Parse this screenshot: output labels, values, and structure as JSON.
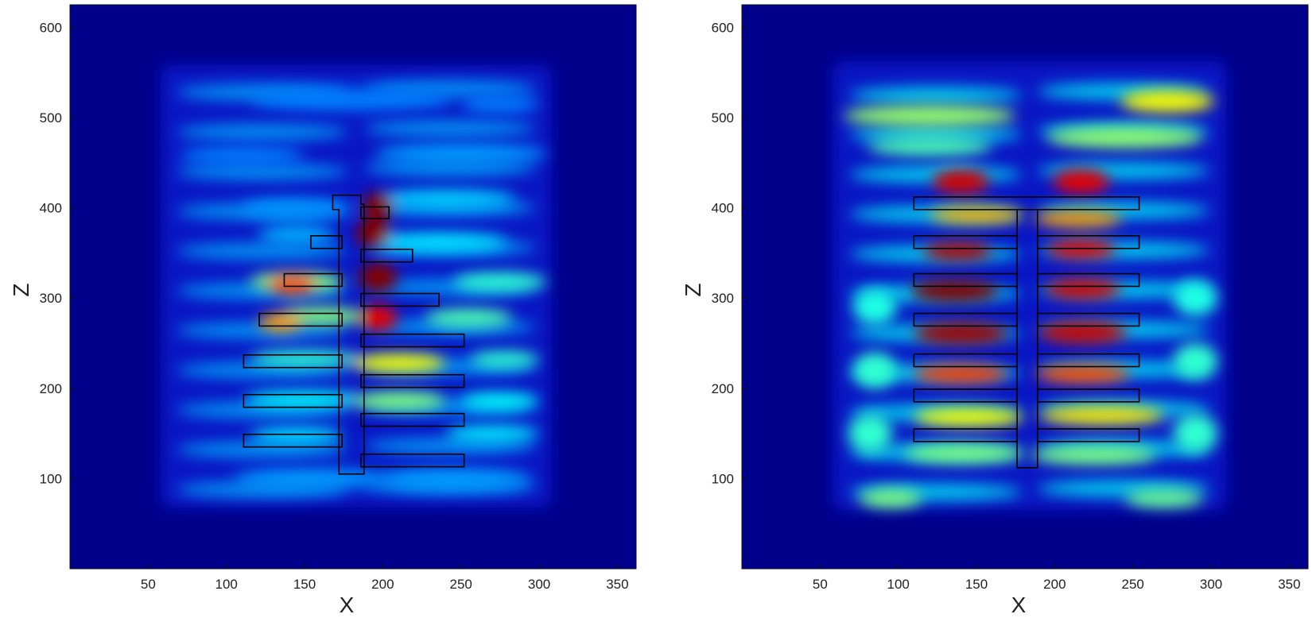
{
  "chart_data": [
    {
      "type": "heatmap",
      "title": "",
      "xlabel": "X",
      "ylabel": "Z",
      "xlim": [
        0,
        362
      ],
      "ylim": [
        0,
        625
      ],
      "xticks": [
        50,
        100,
        150,
        200,
        250,
        300,
        350
      ],
      "yticks": [
        100,
        200,
        300,
        400,
        500,
        600
      ],
      "colormap": "jet",
      "structure": {
        "spine": [
          [
            172,
            105
          ],
          [
            172,
            398
          ],
          [
            168,
            398
          ],
          [
            168,
            414
          ],
          [
            186,
            414
          ],
          [
            186,
            404
          ],
          [
            188,
            404
          ],
          [
            188,
            105
          ]
        ],
        "fins": [
          {
            "x0": 186,
            "x1": 204,
            "z0": 388,
            "z1": 401
          },
          {
            "x0": 154,
            "x1": 174,
            "z0": 355,
            "z1": 369
          },
          {
            "x0": 186,
            "x1": 219,
            "z0": 340,
            "z1": 354
          },
          {
            "x0": 137,
            "x1": 174,
            "z0": 313,
            "z1": 327
          },
          {
            "x0": 186,
            "x1": 236,
            "z0": 291,
            "z1": 305
          },
          {
            "x0": 121,
            "x1": 174,
            "z0": 269,
            "z1": 283
          },
          {
            "x0": 186,
            "x1": 252,
            "z0": 246,
            "z1": 260
          },
          {
            "x0": 111,
            "x1": 174,
            "z0": 223,
            "z1": 237
          },
          {
            "x0": 186,
            "x1": 252,
            "z0": 201,
            "z1": 215
          },
          {
            "x0": 111,
            "x1": 174,
            "z0": 179,
            "z1": 193
          },
          {
            "x0": 186,
            "x1": 252,
            "z0": 158,
            "z1": 172
          },
          {
            "x0": 111,
            "x1": 174,
            "z0": 135,
            "z1": 149
          },
          {
            "x0": 186,
            "x1": 252,
            "z0": 113,
            "z1": 127
          }
        ]
      },
      "hotspots": [
        {
          "x": 197,
          "z": 402,
          "w": 10,
          "h": 15,
          "level": 1.0
        },
        {
          "x": 194,
          "z": 372,
          "w": 11,
          "h": 16,
          "level": 1.0
        },
        {
          "x": 197,
          "z": 323,
          "w": 12,
          "h": 16,
          "level": 1.0
        },
        {
          "x": 197,
          "z": 278,
          "w": 12,
          "h": 14,
          "level": 0.9
        },
        {
          "x": 142,
          "z": 315,
          "w": 16,
          "h": 11,
          "level": 0.8
        },
        {
          "x": 135,
          "z": 273,
          "w": 14,
          "h": 10,
          "level": 0.72
        },
        {
          "x": 210,
          "z": 228,
          "w": 30,
          "h": 10,
          "level": 0.62
        },
        {
          "x": 210,
          "z": 186,
          "w": 30,
          "h": 10,
          "level": 0.5
        },
        {
          "x": 145,
          "z": 318,
          "w": 30,
          "h": 11,
          "level": 0.5
        },
        {
          "x": 160,
          "z": 280,
          "w": 28,
          "h": 10,
          "level": 0.5
        },
        {
          "x": 255,
          "z": 278,
          "w": 28,
          "h": 10,
          "level": 0.45
        },
        {
          "x": 275,
          "z": 318,
          "w": 30,
          "h": 10,
          "level": 0.42
        },
        {
          "x": 150,
          "z": 233,
          "w": 35,
          "h": 9,
          "level": 0.42
        },
        {
          "x": 278,
          "z": 232,
          "w": 22,
          "h": 9,
          "level": 0.42
        },
        {
          "x": 150,
          "z": 188,
          "w": 38,
          "h": 9,
          "level": 0.38
        },
        {
          "x": 275,
          "z": 186,
          "w": 25,
          "h": 9,
          "level": 0.38
        },
        {
          "x": 270,
          "z": 150,
          "w": 30,
          "h": 9,
          "level": 0.36
        },
        {
          "x": 145,
          "z": 148,
          "w": 30,
          "h": 9,
          "level": 0.35
        },
        {
          "x": 235,
          "z": 362,
          "w": 45,
          "h": 10,
          "level": 0.35
        },
        {
          "x": 240,
          "z": 410,
          "w": 45,
          "h": 10,
          "level": 0.33
        },
        {
          "x": 145,
          "z": 370,
          "w": 25,
          "h": 10,
          "level": 0.3
        },
        {
          "x": 155,
          "z": 100,
          "w": 50,
          "h": 11,
          "level": 0.28
        },
        {
          "x": 245,
          "z": 100,
          "w": 50,
          "h": 11,
          "level": 0.28
        },
        {
          "x": 145,
          "z": 400,
          "w": 35,
          "h": 10,
          "level": 0.27
        },
        {
          "x": 250,
          "z": 460,
          "w": 55,
          "h": 11,
          "level": 0.28
        },
        {
          "x": 110,
          "z": 458,
          "w": 40,
          "h": 10,
          "level": 0.25
        },
        {
          "x": 180,
          "z": 520,
          "w": 65,
          "h": 12,
          "level": 0.25
        },
        {
          "x": 275,
          "z": 515,
          "w": 25,
          "h": 10,
          "level": 0.25
        }
      ]
    },
    {
      "type": "heatmap",
      "title": "",
      "xlabel": "X",
      "ylabel": "Z",
      "xlim": [
        0,
        362
      ],
      "ylim": [
        0,
        625
      ],
      "xticks": [
        50,
        100,
        150,
        200,
        250,
        300,
        350
      ],
      "yticks": [
        100,
        200,
        300,
        400,
        500,
        600
      ],
      "colormap": "jet",
      "structure": {
        "left_spine": [
          [
            110,
            398
          ],
          [
            110,
            412
          ],
          [
            254,
            412
          ],
          [
            254,
            398
          ],
          [
            176,
            398
          ],
          [
            176,
            112
          ],
          [
            189,
            112
          ],
          [
            189,
            398
          ]
        ],
        "left_fins": [
          {
            "x0": 110,
            "x1": 176,
            "z0": 355,
            "z1": 369
          },
          {
            "x0": 110,
            "x1": 176,
            "z0": 313,
            "z1": 327
          },
          {
            "x0": 110,
            "x1": 176,
            "z0": 269,
            "z1": 283
          },
          {
            "x0": 110,
            "x1": 176,
            "z0": 224,
            "z1": 238
          },
          {
            "x0": 110,
            "x1": 176,
            "z0": 185,
            "z1": 199
          },
          {
            "x0": 110,
            "x1": 176,
            "z0": 141,
            "z1": 155
          }
        ],
        "right_fins": [
          {
            "x0": 189,
            "x1": 254,
            "z0": 355,
            "z1": 369
          },
          {
            "x0": 189,
            "x1": 254,
            "z0": 313,
            "z1": 327
          },
          {
            "x0": 189,
            "x1": 254,
            "z0": 269,
            "z1": 283
          },
          {
            "x0": 189,
            "x1": 254,
            "z0": 224,
            "z1": 238
          },
          {
            "x0": 189,
            "x1": 254,
            "z0": 185,
            "z1": 199
          },
          {
            "x0": 189,
            "x1": 254,
            "z0": 141,
            "z1": 155
          }
        ]
      },
      "hotspots": [
        {
          "x": 140,
          "z": 429,
          "w": 18,
          "h": 13,
          "level": 0.92
        },
        {
          "x": 217,
          "z": 429,
          "w": 18,
          "h": 13,
          "level": 0.9
        },
        {
          "x": 138,
          "z": 352,
          "w": 22,
          "h": 10,
          "level": 0.95
        },
        {
          "x": 217,
          "z": 354,
          "w": 22,
          "h": 10,
          "level": 0.9
        },
        {
          "x": 136,
          "z": 308,
          "w": 28,
          "h": 12,
          "level": 1.0
        },
        {
          "x": 218,
          "z": 310,
          "w": 24,
          "h": 11,
          "level": 0.92
        },
        {
          "x": 140,
          "z": 261,
          "w": 30,
          "h": 12,
          "level": 0.97
        },
        {
          "x": 218,
          "z": 262,
          "w": 28,
          "h": 12,
          "level": 0.93
        },
        {
          "x": 140,
          "z": 216,
          "w": 30,
          "h": 10,
          "level": 0.82
        },
        {
          "x": 218,
          "z": 216,
          "w": 30,
          "h": 10,
          "level": 0.8
        },
        {
          "x": 150,
          "z": 392,
          "w": 30,
          "h": 9,
          "level": 0.7
        },
        {
          "x": 215,
          "z": 388,
          "w": 28,
          "h": 9,
          "level": 0.72
        },
        {
          "x": 145,
          "z": 168,
          "w": 35,
          "h": 10,
          "level": 0.62
        },
        {
          "x": 230,
          "z": 170,
          "w": 40,
          "h": 10,
          "level": 0.65
        },
        {
          "x": 142,
          "z": 128,
          "w": 38,
          "h": 10,
          "level": 0.5
        },
        {
          "x": 225,
          "z": 126,
          "w": 40,
          "h": 10,
          "level": 0.5
        },
        {
          "x": 272,
          "z": 518,
          "w": 30,
          "h": 12,
          "level": 0.62
        },
        {
          "x": 120,
          "z": 502,
          "w": 55,
          "h": 12,
          "level": 0.52
        },
        {
          "x": 245,
          "z": 478,
          "w": 50,
          "h": 11,
          "level": 0.52
        },
        {
          "x": 120,
          "z": 468,
          "w": 40,
          "h": 10,
          "level": 0.45
        },
        {
          "x": 95,
          "z": 78,
          "w": 20,
          "h": 10,
          "level": 0.5
        },
        {
          "x": 270,
          "z": 78,
          "w": 25,
          "h": 10,
          "level": 0.48
        },
        {
          "x": 82,
          "z": 150,
          "w": 14,
          "h": 22,
          "level": 0.42
        },
        {
          "x": 290,
          "z": 150,
          "w": 14,
          "h": 22,
          "level": 0.42
        },
        {
          "x": 85,
          "z": 220,
          "w": 14,
          "h": 20,
          "level": 0.42
        },
        {
          "x": 290,
          "z": 230,
          "w": 14,
          "h": 20,
          "level": 0.42
        },
        {
          "x": 85,
          "z": 290,
          "w": 14,
          "h": 20,
          "level": 0.4
        },
        {
          "x": 290,
          "z": 300,
          "w": 14,
          "h": 20,
          "level": 0.4
        }
      ]
    }
  ]
}
